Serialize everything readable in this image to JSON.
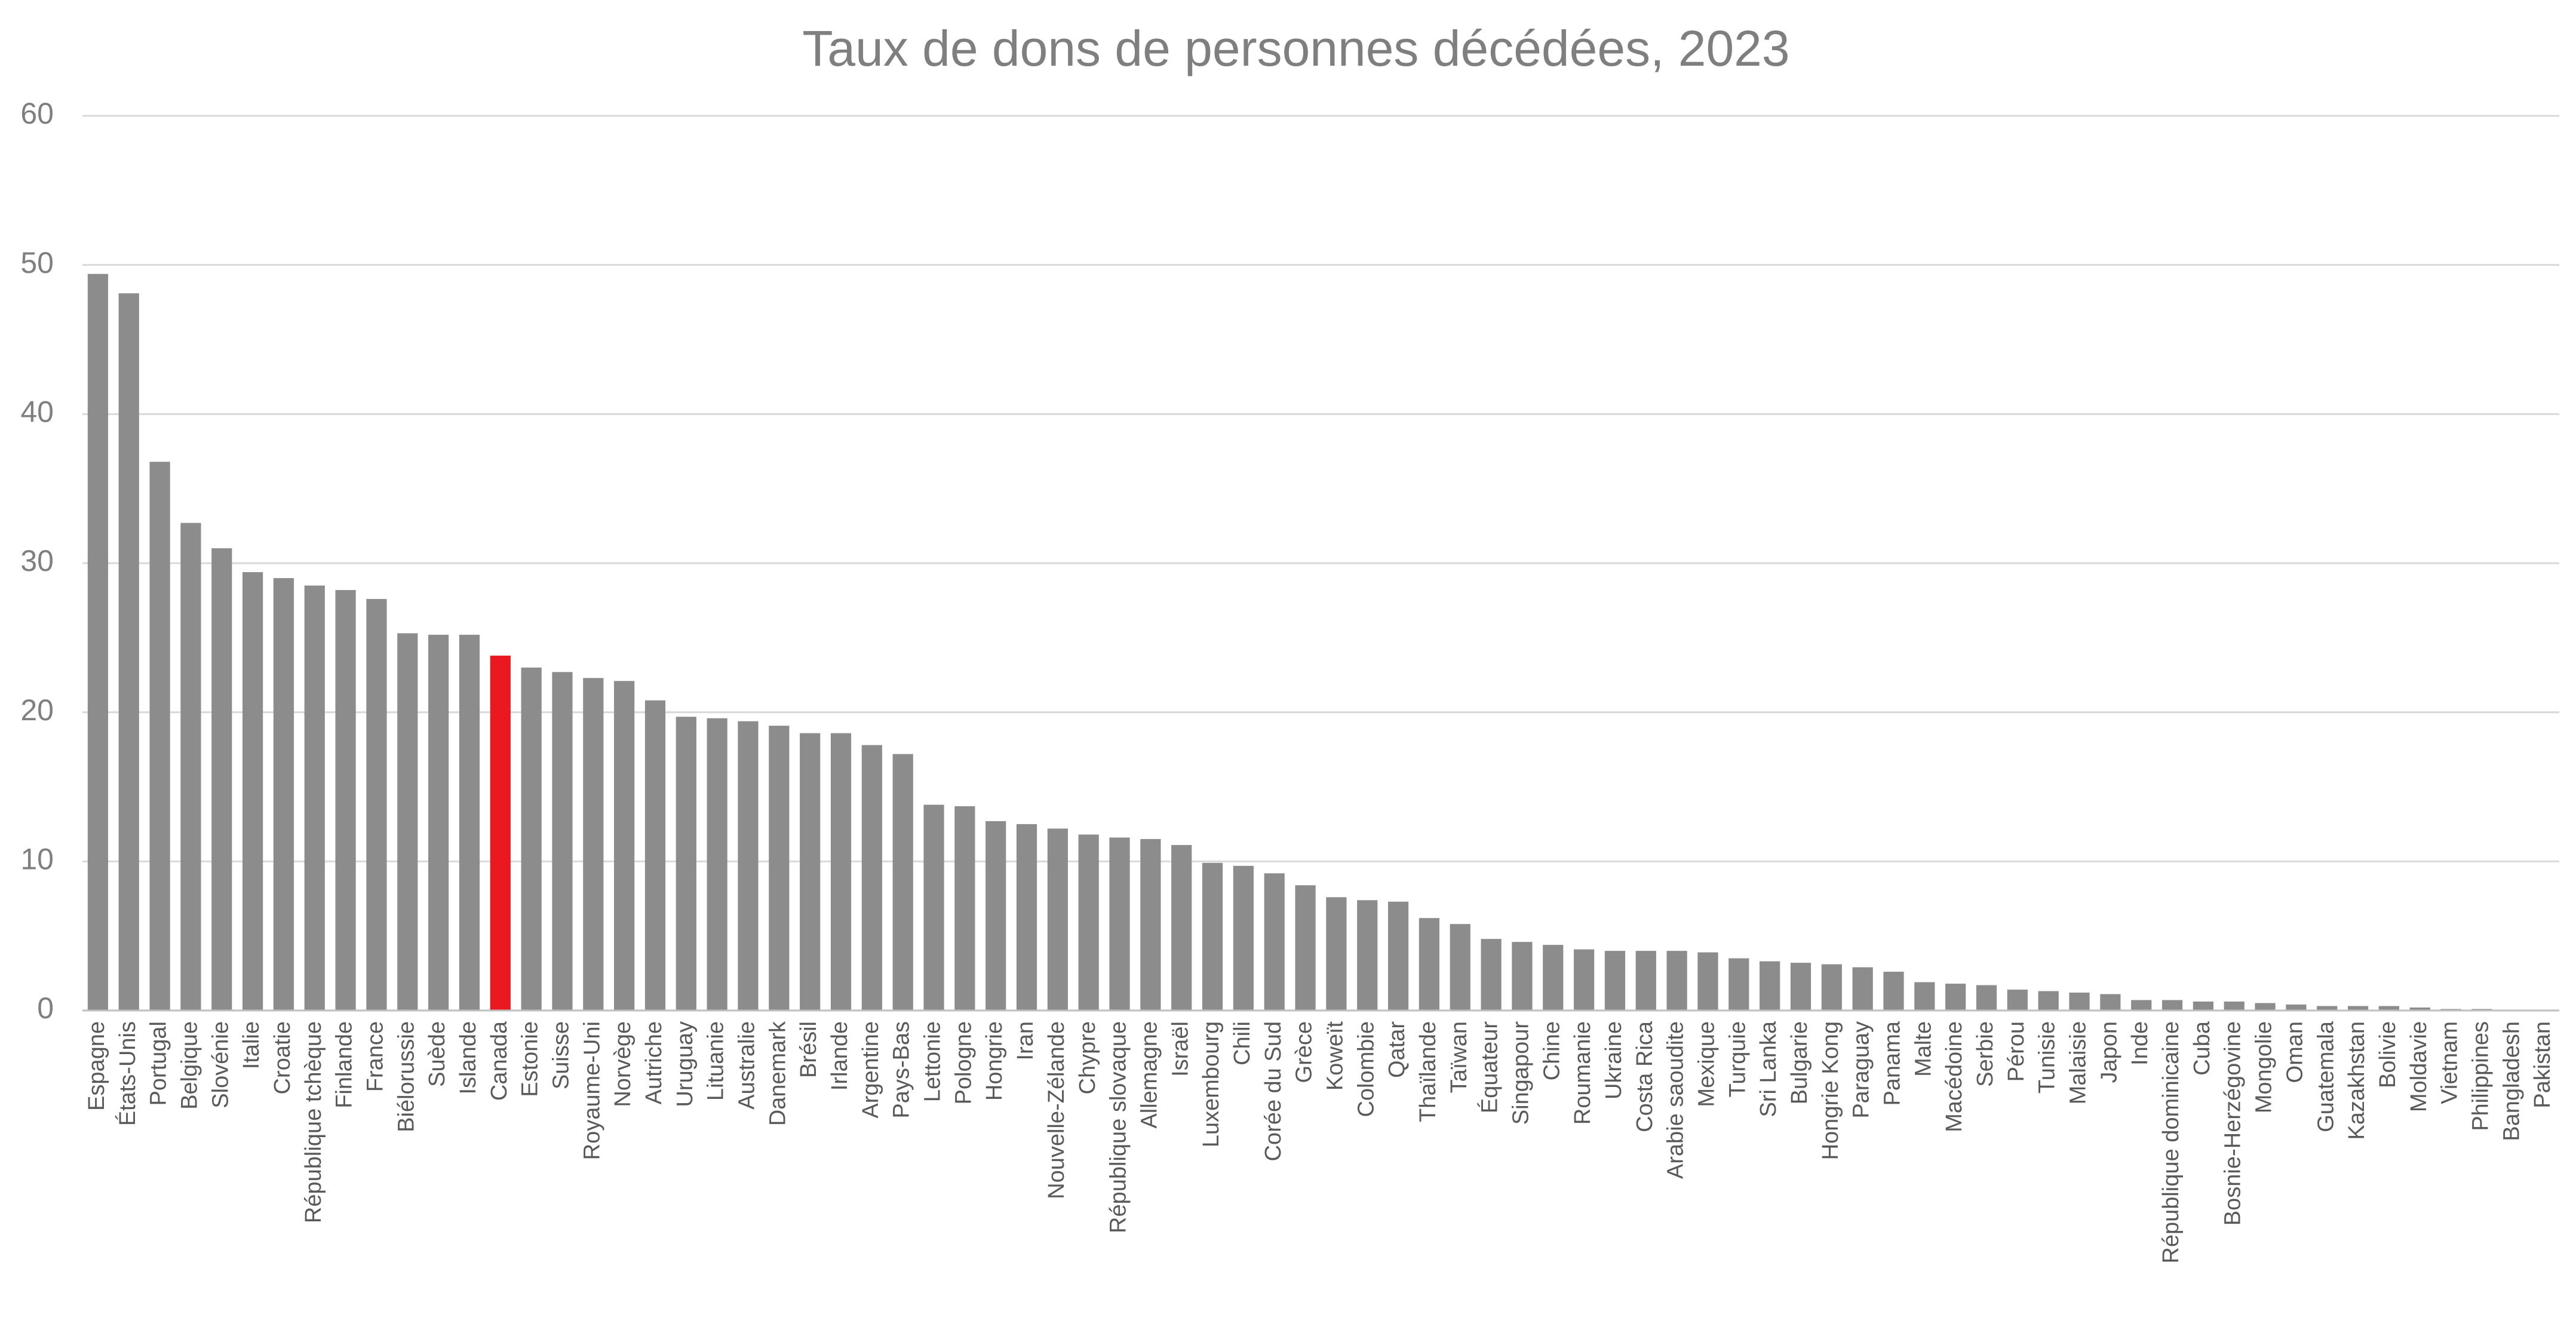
{
  "chart_data": {
    "type": "bar",
    "title": "Taux de dons de personnes décédées, 2023",
    "categories": [
      "Espagne",
      "États-Unis",
      "Portugal",
      "Belgique",
      "Slovénie",
      "Italie",
      "Croatie",
      "République tchèque",
      "Finlande",
      "France",
      "Biélorussie",
      "Suède",
      "Islande",
      "Canada",
      "Estonie",
      "Suisse",
      "Royaume-Uni",
      "Norvège",
      "Autriche",
      "Uruguay",
      "Lituanie",
      "Australie",
      "Danemark",
      "Brésil",
      "Irlande",
      "Argentine",
      "Pays-Bas",
      "Lettonie",
      "Pologne",
      "Hongrie",
      "Iran",
      "Nouvelle-Zélande",
      "Chypre",
      "République slovaque",
      "Allemagne",
      "Israël",
      "Luxembourg",
      "Chili",
      "Corée du Sud",
      "Grèce",
      "Koweït",
      "Colombie",
      "Qatar",
      "Thaïlande",
      "Taïwan",
      "Équateur",
      "Singapour",
      "Chine",
      "Roumanie",
      "Ukraine",
      "Costa Rica",
      "Arabie saoudite",
      "Mexique",
      "Turquie",
      "Sri Lanka",
      "Bulgarie",
      "Hongrie Kong",
      "Paraguay",
      "Panama",
      "Malte",
      "Macédoine",
      "Serbie",
      "Pérou",
      "Tunisie",
      "Malaisie",
      "Japon",
      "Inde",
      "République dominicaine",
      "Cuba",
      "Bosnie-Herzégovine",
      "Mongolie",
      "Oman",
      "Guatemala",
      "Kazakhstan",
      "Bolivie",
      "Moldavie",
      "Vietnam",
      "Philippines",
      "Bangladesh",
      "Pakistan"
    ],
    "values": [
      49.4,
      48.1,
      36.8,
      32.7,
      31.0,
      29.4,
      29.0,
      28.5,
      28.2,
      27.6,
      25.3,
      25.2,
      25.2,
      23.8,
      23.0,
      22.7,
      22.3,
      22.1,
      20.8,
      19.7,
      19.6,
      19.4,
      19.1,
      18.6,
      18.6,
      17.8,
      17.2,
      13.8,
      13.7,
      12.7,
      12.5,
      12.2,
      11.8,
      11.6,
      11.5,
      11.1,
      9.9,
      9.7,
      9.2,
      8.4,
      7.6,
      7.4,
      7.3,
      6.2,
      5.8,
      4.8,
      4.6,
      4.4,
      4.1,
      4.0,
      4.0,
      4.0,
      3.9,
      3.5,
      3.3,
      3.2,
      3.1,
      2.9,
      2.6,
      1.9,
      1.8,
      1.7,
      1.4,
      1.3,
      1.2,
      1.1,
      0.7,
      0.7,
      0.6,
      0.6,
      0.5,
      0.4,
      0.3,
      0.3,
      0.3,
      0.2,
      0.1,
      0.1,
      0.0,
      0.0
    ],
    "colors": [
      "#8c8c8c",
      "#8c8c8c",
      "#8c8c8c",
      "#8c8c8c",
      "#8c8c8c",
      "#8c8c8c",
      "#8c8c8c",
      "#8c8c8c",
      "#8c8c8c",
      "#8c8c8c",
      "#8c8c8c",
      "#8c8c8c",
      "#8c8c8c",
      "#e8191f",
      "#8c8c8c",
      "#8c8c8c",
      "#8c8c8c",
      "#8c8c8c",
      "#8c8c8c",
      "#8c8c8c",
      "#8c8c8c",
      "#8c8c8c",
      "#8c8c8c",
      "#8c8c8c",
      "#8c8c8c",
      "#8c8c8c",
      "#8c8c8c",
      "#8c8c8c",
      "#8c8c8c",
      "#8c8c8c",
      "#8c8c8c",
      "#8c8c8c",
      "#8c8c8c",
      "#8c8c8c",
      "#8c8c8c",
      "#8c8c8c",
      "#8c8c8c",
      "#8c8c8c",
      "#8c8c8c",
      "#8c8c8c",
      "#8c8c8c",
      "#8c8c8c",
      "#8c8c8c",
      "#8c8c8c",
      "#8c8c8c",
      "#8c8c8c",
      "#8c8c8c",
      "#8c8c8c",
      "#8c8c8c",
      "#8c8c8c",
      "#8c8c8c",
      "#8c8c8c",
      "#8c8c8c",
      "#8c8c8c",
      "#8c8c8c",
      "#8c8c8c",
      "#8c8c8c",
      "#8c8c8c",
      "#8c8c8c",
      "#8c8c8c",
      "#8c8c8c",
      "#8c8c8c",
      "#8c8c8c",
      "#8c8c8c",
      "#8c8c8c",
      "#8c8c8c",
      "#8c8c8c",
      "#8c8c8c",
      "#8c8c8c",
      "#8c8c8c",
      "#8c8c8c",
      "#8c8c8c",
      "#8c8c8c",
      "#8c8c8c",
      "#8c8c8c",
      "#8c8c8c",
      "#8c8c8c",
      "#8c8c8c",
      "#8c8c8c",
      "#8c8c8c"
    ],
    "ylim": [
      0,
      60
    ],
    "yticks": [
      0,
      10,
      20,
      30,
      40,
      50,
      60
    ],
    "grid": true
  }
}
